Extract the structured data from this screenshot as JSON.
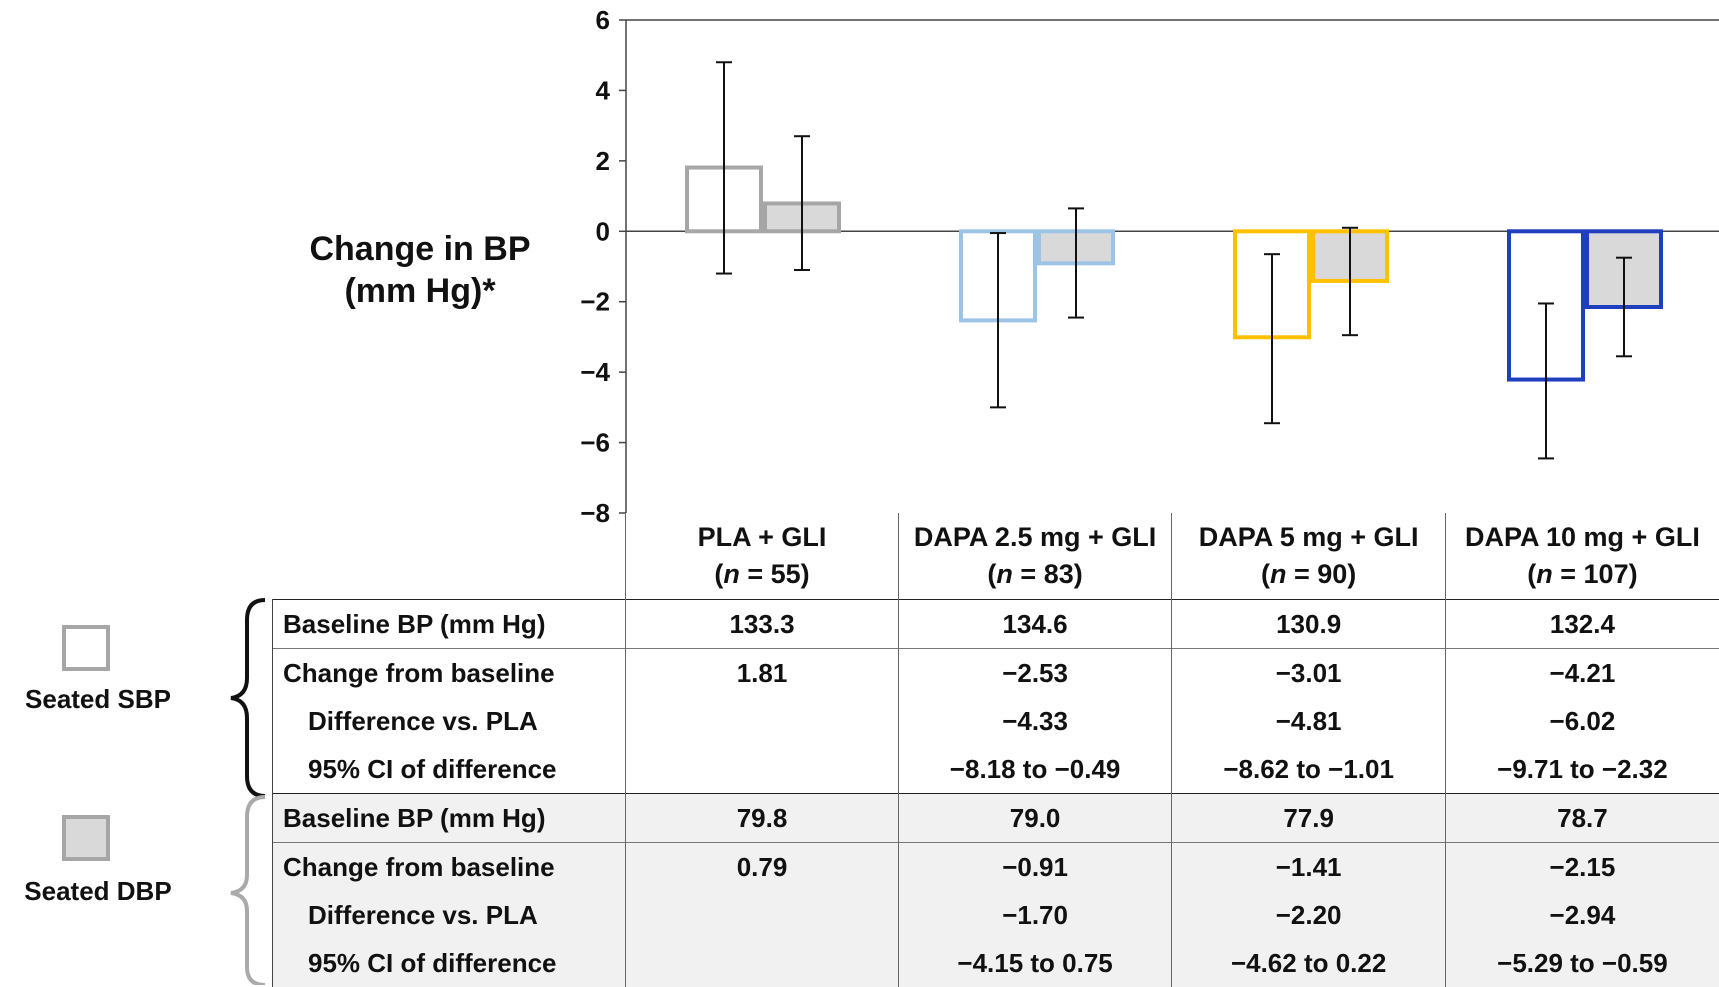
{
  "chart_data": {
    "type": "bar",
    "ylabel_lines": [
      "Change in BP",
      "(mm Hg)*"
    ],
    "ylim": [
      -8,
      6
    ],
    "yticks": [
      6,
      4,
      2,
      0,
      -2,
      -4,
      -6,
      -8
    ],
    "yticks_labels": [
      "6",
      "4",
      "2",
      "0",
      "−2",
      "−4",
      "−6",
      "−8"
    ],
    "categories": [
      {
        "name": "PLA + GLI",
        "n_label": "(n = 55)",
        "n_value": "55"
      },
      {
        "name": "DAPA 2.5 mg + GLI",
        "n_label": "(n = 83)",
        "n_value": "83"
      },
      {
        "name": "DAPA 5 mg + GLI",
        "n_label": "(n = 90)",
        "n_value": "90"
      },
      {
        "name": "DAPA 10 mg + GLI",
        "n_label": "(n = 107)",
        "n_value": "107"
      }
    ],
    "series": [
      {
        "name": "Seated SBP",
        "fill": "#ffffff",
        "values": [
          1.81,
          -2.53,
          -3.01,
          -4.21
        ],
        "err_low": [
          -1.2,
          -5.0,
          -5.45,
          -6.45
        ],
        "err_high": [
          4.8,
          -0.05,
          -0.65,
          -2.05
        ]
      },
      {
        "name": "Seated DBP",
        "fill": "#d9d9d9",
        "values": [
          0.79,
          -0.91,
          -1.41,
          -2.15
        ],
        "err_low": [
          -1.1,
          -2.45,
          -2.95,
          -3.55
        ],
        "err_high": [
          2.7,
          0.65,
          0.1,
          -0.75
        ]
      }
    ],
    "category_colors": [
      "#a6a6a6",
      "#9dc3e6",
      "#ffc000",
      "#1f3fbf"
    ],
    "grid": false
  },
  "legend": {
    "sbp_label": "Seated SBP",
    "dbp_label": "Seated DBP"
  },
  "table": {
    "sbp_rows": [
      {
        "label": "Baseline BP (mm Hg)",
        "indent": false,
        "values": [
          "133.3",
          "134.6",
          "130.9",
          "132.4"
        ]
      },
      {
        "label": "Change from baseline",
        "indent": false,
        "values": [
          "1.81",
          "−2.53",
          "−3.01",
          "−4.21"
        ]
      },
      {
        "label": "Difference vs. PLA",
        "indent": true,
        "values": [
          "",
          "−4.33",
          "−4.81",
          "−6.02"
        ]
      },
      {
        "label": "95% CI of difference",
        "indent": true,
        "values": [
          "",
          "−8.18 to −0.49",
          "−8.62 to −1.01",
          "−9.71 to −2.32"
        ]
      }
    ],
    "dbp_rows": [
      {
        "label": "Baseline BP (mm Hg)",
        "indent": false,
        "values": [
          "79.8",
          "79.0",
          "77.9",
          "78.7"
        ]
      },
      {
        "label": "Change from baseline",
        "indent": false,
        "values": [
          "0.79",
          "−0.91",
          "−1.41",
          "−2.15"
        ]
      },
      {
        "label": "Difference vs. PLA",
        "indent": true,
        "values": [
          "",
          "−1.70",
          "−2.20",
          "−2.94"
        ]
      },
      {
        "label": "95% CI of difference",
        "indent": true,
        "values": [
          "",
          "−4.15 to 0.75",
          "−4.62 to 0.22",
          "−5.29 to −0.59"
        ]
      }
    ]
  }
}
